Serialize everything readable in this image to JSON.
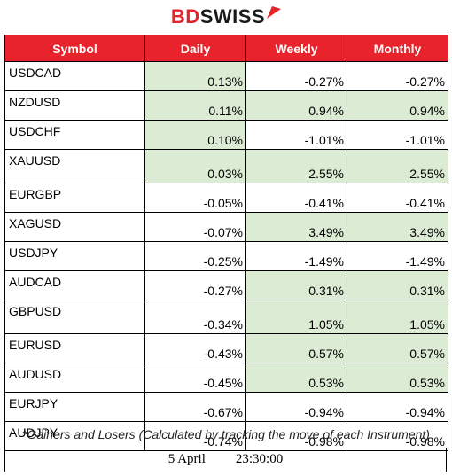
{
  "brand": {
    "name_part1": "BD",
    "name_part2": "SWISS",
    "accent": "#e3262c"
  },
  "table": {
    "headers": [
      "Symbol",
      "Daily",
      "Weekly",
      "Monthly"
    ],
    "header_color": "#e8232c",
    "positive_fill": "#dcebd4",
    "rows": [
      {
        "symbol": "USDCAD",
        "daily": "0.13%",
        "weekly": "-0.27%",
        "monthly": "-0.27%"
      },
      {
        "symbol": "NZDUSD",
        "daily": "0.11%",
        "weekly": "0.94%",
        "monthly": "0.94%"
      },
      {
        "symbol": "USDCHF",
        "daily": "0.10%",
        "weekly": "-1.01%",
        "monthly": "-1.01%"
      },
      {
        "symbol": "XAUUSD",
        "daily": "0.03%",
        "weekly": "2.55%",
        "monthly": "2.55%"
      },
      {
        "symbol": "EURGBP",
        "daily": "-0.05%",
        "weekly": "-0.41%",
        "monthly": "-0.41%"
      },
      {
        "symbol": "XAGUSD",
        "daily": "-0.07%",
        "weekly": "3.49%",
        "monthly": "3.49%"
      },
      {
        "symbol": "USDJPY",
        "daily": "-0.25%",
        "weekly": "-1.49%",
        "monthly": "-1.49%"
      },
      {
        "symbol": "AUDCAD",
        "daily": "-0.27%",
        "weekly": "0.31%",
        "monthly": "0.31%"
      },
      {
        "symbol": "GBPUSD",
        "daily": "-0.34%",
        "weekly": "1.05%",
        "monthly": "1.05%"
      },
      {
        "symbol": "EURUSD",
        "daily": "-0.43%",
        "weekly": "0.57%",
        "monthly": "0.57%"
      },
      {
        "symbol": "AUDUSD",
        "daily": "-0.45%",
        "weekly": "0.53%",
        "monthly": "0.53%"
      },
      {
        "symbol": "EURJPY",
        "daily": "-0.67%",
        "weekly": "-0.94%",
        "monthly": "-0.94%"
      },
      {
        "symbol": "AUDJPY",
        "daily": "-0.74%",
        "weekly": "-0.98%",
        "monthly": "-0.98%"
      }
    ]
  },
  "footnote": "*Gainers and Losers (Calculated by tracking the move of each Instrument)",
  "timestamp": {
    "date": "5 April",
    "time": "23:30:00"
  }
}
